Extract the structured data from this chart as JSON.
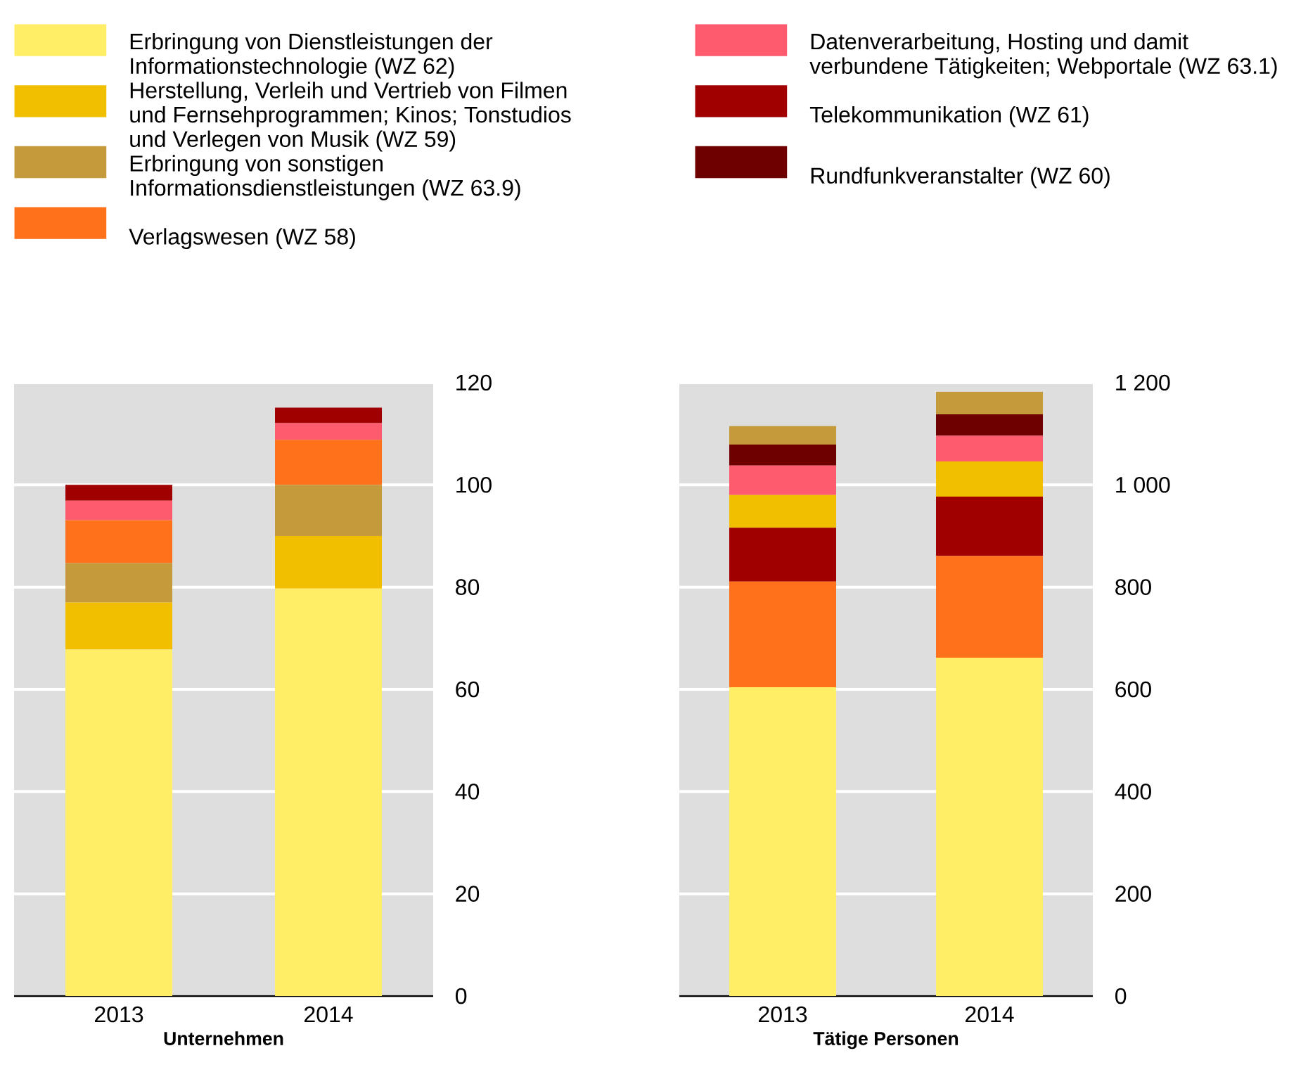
{
  "chart_data": [
    {
      "type": "bar",
      "stacked": true,
      "categories": [
        "2013",
        "2014"
      ],
      "xlabel": "Unternehmen",
      "ylim": [
        0,
        120
      ],
      "yticks": [
        0,
        20,
        40,
        60,
        80,
        100,
        120
      ],
      "grid": "y",
      "legend": "top",
      "series": [
        {
          "name": "Erbringung von Dienstleistungen der Informationstechnologie (WZ 62)",
          "color": "#ffee66",
          "values": [
            67.8,
            79.7
          ]
        },
        {
          "name": "Herstellung, Verleih und Vertrieb von Filmen und Fernsehprogrammen; Kinos; Tonstudios und Verlegen von Musik (WZ 59)",
          "color": "#f2bf00",
          "values": [
            9.2,
            10.3
          ]
        },
        {
          "name": "Erbringung von sonstigen Informationsdienstleistungen (WZ 63.9)",
          "color": "#c49a3a",
          "values": [
            7.7,
            10.0
          ]
        },
        {
          "name": "Verlagswesen (WZ 58)",
          "color": "#ff711b",
          "values": [
            8.4,
            8.8
          ]
        },
        {
          "name": "Datenverarbeitung, Hosting und damit verbundene Tätigkeiten; Webportale (WZ 63.1)",
          "color": "#ff5b6e",
          "values": [
            3.8,
            3.3
          ]
        },
        {
          "name": "Telekommunikation (WZ 61)",
          "color": "#a00000",
          "values": [
            3.1,
            3.0
          ]
        },
        {
          "name": "Rundfunkveranstalter (WZ 60)",
          "color": "#6e0000",
          "values": [
            null,
            null
          ]
        }
      ]
    },
    {
      "type": "bar",
      "stacked": true,
      "categories": [
        "2013",
        "2014"
      ],
      "xlabel": "Tätige Personen",
      "ylim": [
        0,
        1200
      ],
      "yticks": [
        0,
        200,
        400,
        600,
        800,
        {
          "value": 1000,
          "label": "1 000"
        },
        {
          "value": 1200,
          "label": "1 200"
        }
      ],
      "grid": "y",
      "series": [
        {
          "color": "#ffee66",
          "values": [
            604,
            662
          ]
        },
        {
          "color": "#ff711b",
          "values": [
            207,
            199
          ]
        },
        {
          "color": "#a00000",
          "values": [
            105,
            116
          ]
        },
        {
          "color": "#f2bf00",
          "values": [
            64,
            69
          ]
        },
        {
          "color": "#ff5b6e",
          "values": [
            58,
            50
          ]
        },
        {
          "color": "#6e0000",
          "values": [
            41,
            42
          ]
        },
        {
          "color": "#c49a3a",
          "values": [
            36,
            44
          ]
        }
      ]
    }
  ]
}
